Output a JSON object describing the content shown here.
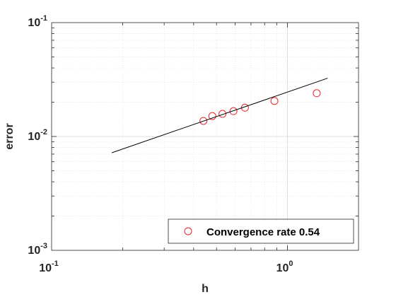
{
  "chart_data": {
    "type": "scatter",
    "xscale": "log",
    "yscale": "log",
    "xlim": [
      0.1,
      2.0
    ],
    "ylim": [
      0.001,
      0.1
    ],
    "xlabel": "h",
    "ylabel": "error",
    "x_ticks": [
      {
        "value": 0.1,
        "base": "10",
        "exp": "-1"
      },
      {
        "value": 1.0,
        "base": "10",
        "exp": "0"
      }
    ],
    "y_ticks": [
      {
        "value": 0.001,
        "base": "10",
        "exp": "-3"
      },
      {
        "value": 0.01,
        "base": "10",
        "exp": "-2"
      },
      {
        "value": 0.1,
        "base": "10",
        "exp": "-1"
      }
    ],
    "grid": true,
    "minor_grid": true,
    "legend_position": "bottom-right",
    "series": [
      {
        "name": "Convergence rate 0.54",
        "kind": "markers",
        "marker": "circle",
        "color": "#e8262b",
        "x": [
          0.44,
          0.48,
          0.53,
          0.59,
          0.66,
          0.88,
          1.33
        ],
        "y": [
          0.0137,
          0.0151,
          0.0158,
          0.0167,
          0.0179,
          0.0205,
          0.024
        ]
      },
      {
        "kind": "line",
        "color": "#000000",
        "x": [
          0.18,
          1.48
        ],
        "y": [
          0.0072,
          0.0325
        ]
      }
    ]
  }
}
